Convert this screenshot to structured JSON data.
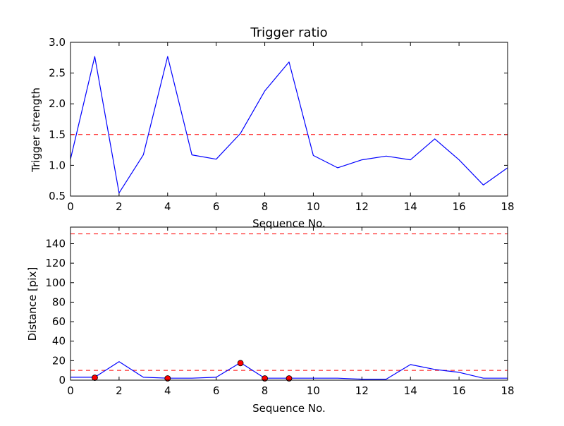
{
  "chart_data": [
    {
      "type": "line",
      "title": "Trigger ratio",
      "xlabel": "Sequence No.",
      "ylabel": "Trigger strength",
      "xlim": [
        0,
        18
      ],
      "ylim": [
        0.5,
        3.0
      ],
      "xticks": [
        0,
        2,
        4,
        6,
        8,
        10,
        12,
        14,
        16,
        18
      ],
      "yticks": [
        0.5,
        1.0,
        1.5,
        2.0,
        2.5,
        3.0
      ],
      "ytick_labels": [
        "0.5",
        "1.0",
        "1.5",
        "2.0",
        "2.5",
        "3.0"
      ],
      "grid": false,
      "series": [
        {
          "color": "#0000ff",
          "style": "line",
          "x": [
            0,
            1,
            2,
            3,
            4,
            5,
            6,
            7,
            8,
            9,
            10,
            11,
            12,
            13,
            14,
            15,
            16,
            17,
            18
          ],
          "values": [
            1.1,
            2.77,
            0.55,
            1.17,
            2.77,
            1.17,
            1.1,
            1.52,
            2.21,
            2.68,
            1.16,
            0.96,
            1.09,
            1.15,
            1.09,
            1.43,
            1.09,
            0.68,
            0.96
          ]
        }
      ],
      "hlines": [
        {
          "y": 1.5,
          "color": "#ff0000",
          "style": "dashed"
        }
      ]
    },
    {
      "type": "line",
      "title": "",
      "xlabel": "Sequence No.",
      "ylabel": "Distance [pix]",
      "xlim": [
        0,
        18
      ],
      "ylim": [
        0,
        157
      ],
      "xticks": [
        0,
        2,
        4,
        6,
        8,
        10,
        12,
        14,
        16,
        18
      ],
      "yticks": [
        0,
        20,
        40,
        60,
        80,
        100,
        120,
        140
      ],
      "ytick_labels": [
        "0",
        "20",
        "40",
        "60",
        "80",
        "100",
        "120",
        "140"
      ],
      "grid": false,
      "series": [
        {
          "color": "#0000ff",
          "style": "line",
          "x": [
            0,
            1,
            2,
            3,
            4,
            5,
            6,
            7,
            8,
            9,
            10,
            11,
            12,
            13,
            14,
            15,
            16,
            17,
            18
          ],
          "values": [
            3,
            3,
            19,
            3,
            2,
            2,
            3,
            18,
            2,
            2,
            2,
            2,
            1,
            1,
            16,
            11,
            8,
            2,
            2
          ]
        },
        {
          "color": "#ff0000",
          "style": "markers",
          "x": [
            1,
            4,
            7,
            8,
            9
          ],
          "values": [
            2.5,
            1.8,
            17.5,
            1.8,
            1.8
          ]
        }
      ],
      "hlines": [
        {
          "y": 150,
          "color": "#ff0000",
          "style": "dashed"
        },
        {
          "y": 10,
          "color": "#ff0000",
          "style": "dashed"
        }
      ]
    }
  ]
}
